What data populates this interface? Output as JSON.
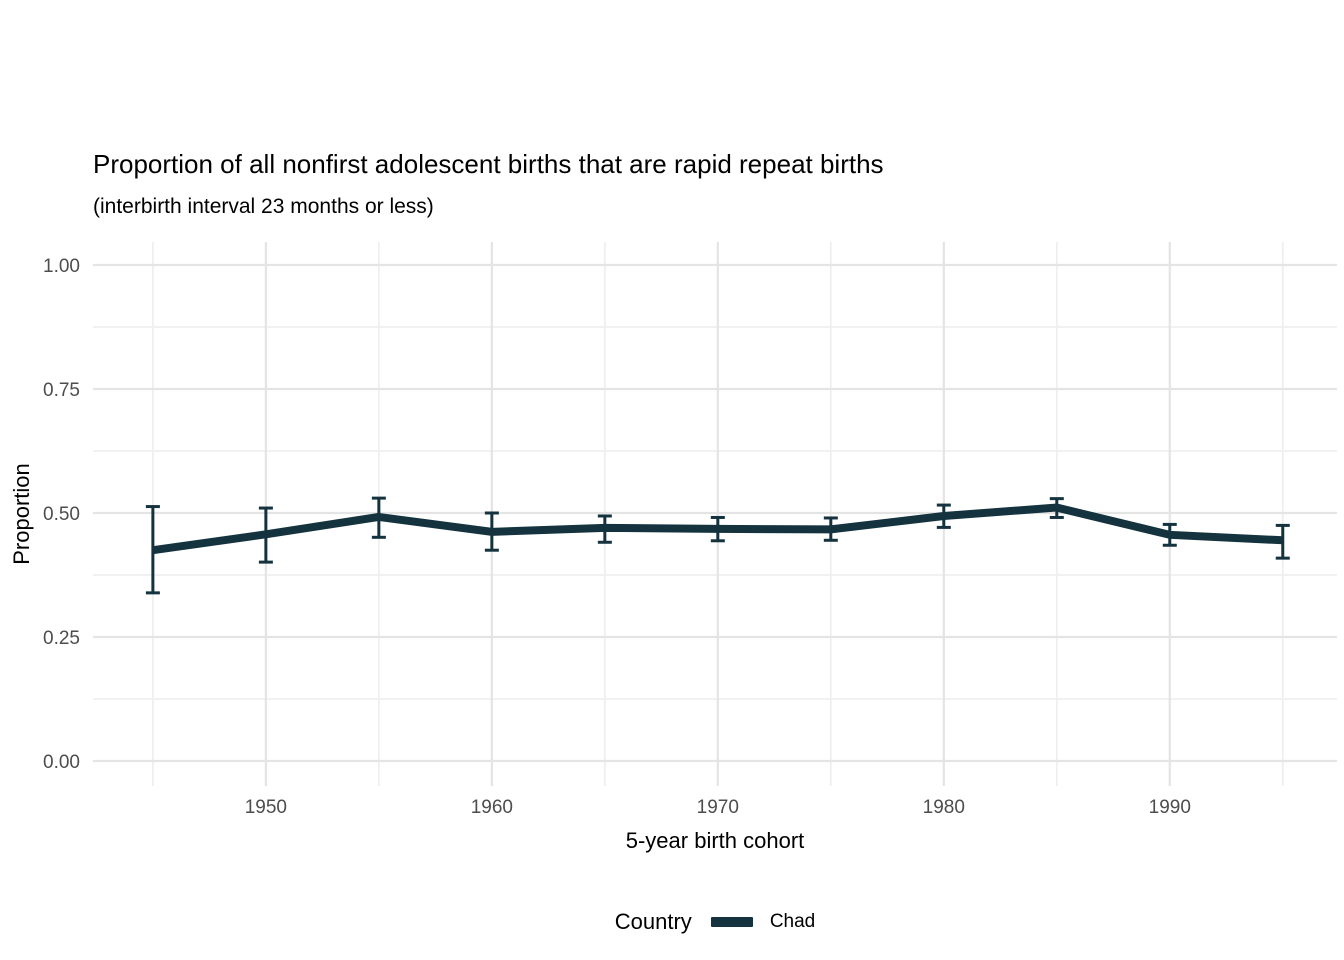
{
  "page": {
    "background": "#ffffff"
  },
  "chart_data": {
    "type": "line",
    "title": "Proportion of all nonfirst adolescent births that are rapid repeat births",
    "subtitle": "(interbirth interval 23 months or less)",
    "xlabel": "5-year birth cohort",
    "ylabel": "Proportion",
    "xlim": [
      1942.35,
      1997.4
    ],
    "ylim": [
      -0.0504,
      1.0464
    ],
    "grid": "major+minor",
    "x_ticks": {
      "values": [
        1950,
        1960,
        1970,
        1980,
        1990
      ],
      "labels": [
        "1950",
        "1960",
        "1970",
        "1980",
        "1990"
      ]
    },
    "x_minor": [
      1945,
      1955,
      1965,
      1975,
      1985,
      1995
    ],
    "y_ticks": {
      "values": [
        0,
        0.25,
        0.5,
        0.75,
        1.0
      ],
      "labels": [
        "0.00",
        "0.25",
        "0.50",
        "0.75",
        "1.00"
      ]
    },
    "y_minor": [
      0.125,
      0.375,
      0.625,
      0.875
    ],
    "legend": {
      "position": "bottom",
      "title": "Country",
      "entries": [
        {
          "label": "Chad",
          "color": "#14333e"
        }
      ]
    },
    "series": [
      {
        "name": "Chad",
        "color": "#14333e",
        "x": [
          1945,
          1950,
          1955,
          1960,
          1965,
          1970,
          1975,
          1980,
          1985,
          1990,
          1995
        ],
        "y": [
          0.425,
          0.457,
          0.492,
          0.462,
          0.47,
          0.468,
          0.467,
          0.494,
          0.511,
          0.456,
          0.445
        ],
        "y_low": [
          0.339,
          0.401,
          0.451,
          0.425,
          0.441,
          0.444,
          0.445,
          0.471,
          0.491,
          0.435,
          0.409
        ],
        "y_high": [
          0.513,
          0.51,
          0.53,
          0.5,
          0.494,
          0.491,
          0.49,
          0.516,
          0.529,
          0.477,
          0.475
        ]
      }
    ],
    "colors": {
      "grid_major": "#e4e4e4",
      "grid_minor": "#efefef",
      "axis_text": "#4d4d4d",
      "text": "#000000"
    }
  }
}
